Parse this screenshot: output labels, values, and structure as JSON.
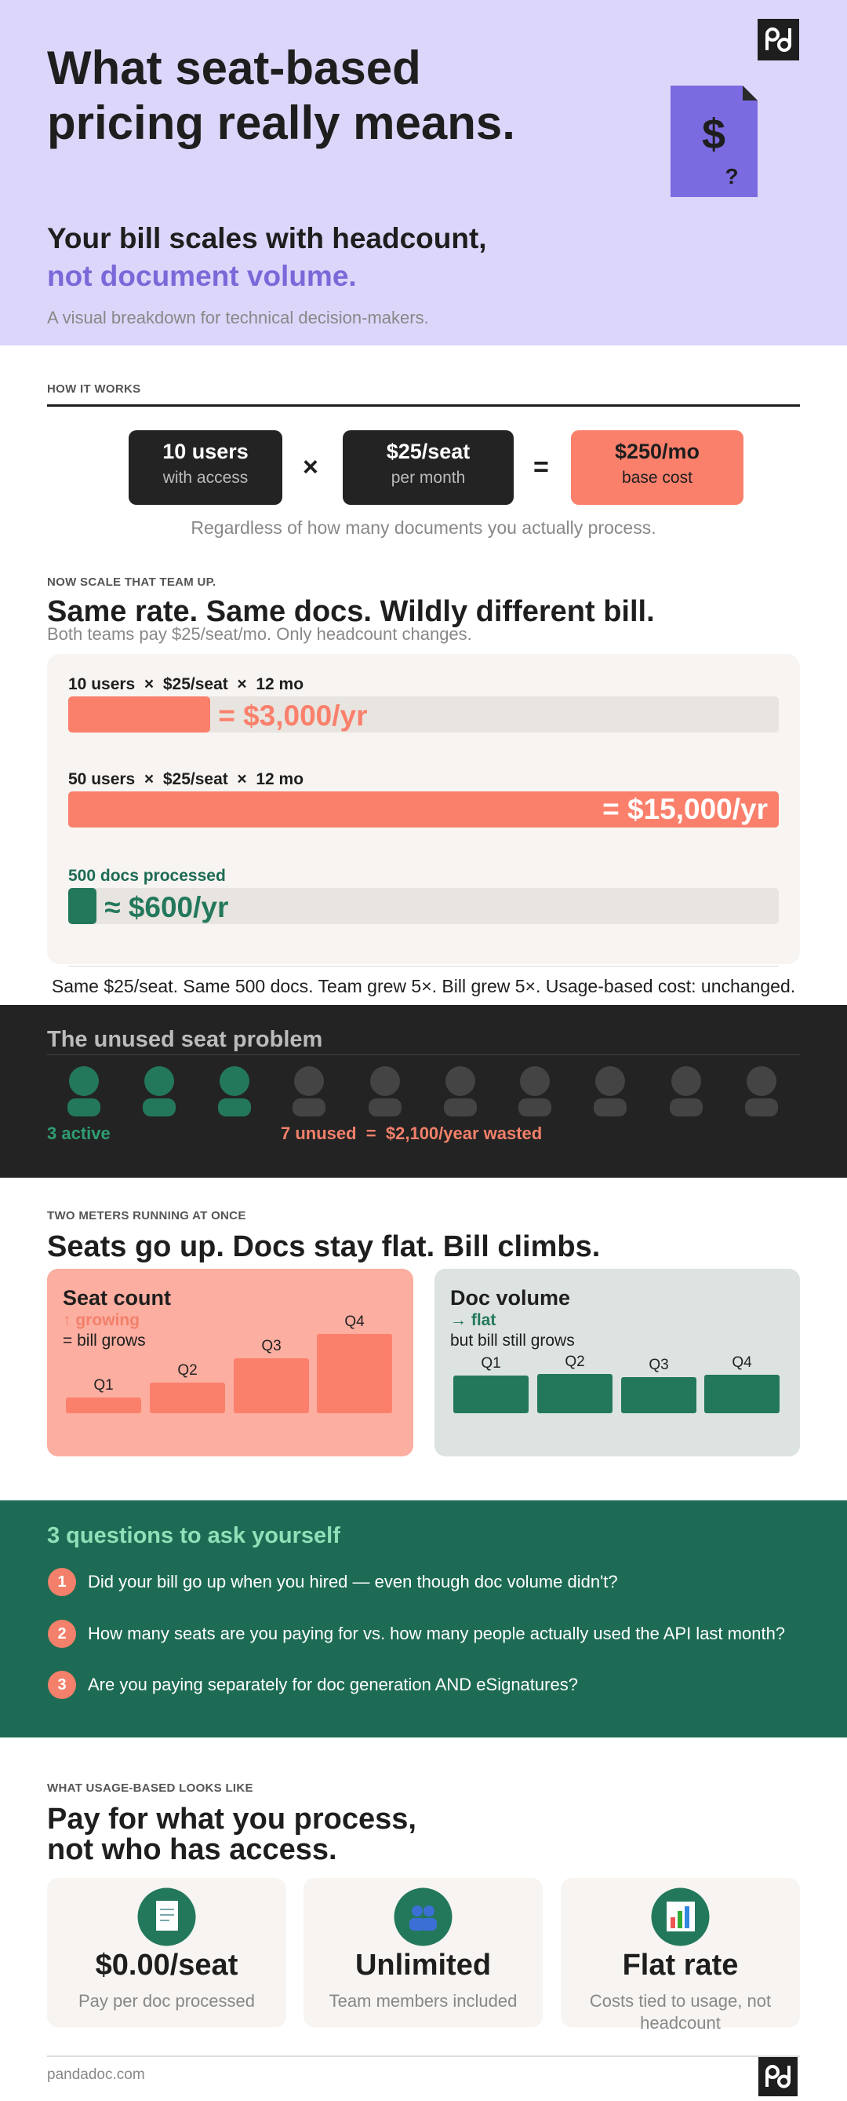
{
  "header": {
    "title": "What seat-based pricing really means.",
    "subtitle": "Your bill scales with headcount,",
    "subtitle_highlight": "not document volume.",
    "tagline": "A visual breakdown for technical decision-makers."
  },
  "how_it_works": {
    "label": "HOW IT WORKS",
    "terms": [
      {
        "value": "10 users",
        "caption": "with access"
      },
      {
        "value": "$25/seat",
        "caption": "per month"
      },
      {
        "value": "$250/mo",
        "caption": "base cost"
      }
    ],
    "operators": [
      "×",
      "="
    ],
    "note": "Regardless of how many documents you actually process."
  },
  "scale": {
    "label": "NOW SCALE THAT TEAM UP.",
    "title": "Same rate. Same docs. Wildly different bill.",
    "subtitle": "Both teams pay $25/seat/mo. Only headcount changes.",
    "rows": [
      {
        "formula": "10 users  ×  $25/seat  ×  12 mo",
        "amount": {
          "value": 3000,
          "label": "= $3,000/yr"
        }
      },
      {
        "formula": "50 users  ×  $25/seat  ×  12 mo",
        "amount": {
          "value": 15000,
          "label": "= $15,000/yr"
        }
      },
      {
        "formula": "500 docs processed",
        "amount": {
          "value": 600,
          "label": "≈ $600/yr"
        }
      }
    ],
    "footnote": "Same $25/seat. Same 500 docs. Team grew 5×. Bill grew 5×. Usage-based cost: unchanged."
  },
  "unused": {
    "title": "The unused seat problem",
    "active": "3 active",
    "unused": "7 unused  =  $2,100/year wasted"
  },
  "meters": {
    "label": "TWO METERS RUNNING AT ONCE",
    "title": "Seats go up. Docs stay flat. Bill climbs.",
    "cards": [
      {
        "title": "Seat count",
        "trend": "↑ growing",
        "note": "= bill grows",
        "quarters": [
          "Q1",
          "Q2",
          "Q3",
          "Q4"
        ]
      },
      {
        "title": "Doc volume",
        "trend": "→ flat",
        "note": "but bill still grows",
        "quarters": [
          "Q1",
          "Q2",
          "Q3",
          "Q4"
        ]
      }
    ]
  },
  "questions": {
    "title": "3 questions to ask yourself",
    "items": [
      {
        "number": 1,
        "text": "Did your bill go up when you hired — even though doc volume didn't?"
      },
      {
        "number": 2,
        "text": "How many seats are you paying for vs. how many people actually used the API last month?"
      },
      {
        "number": 3,
        "text": "Are you paying separately for doc generation AND eSignatures?"
      }
    ]
  },
  "usage": {
    "label": "WHAT USAGE-BASED LOOKS LIKE",
    "title_lines": [
      "Pay for what you process,",
      "not who has access."
    ],
    "cards": [
      {
        "value": "$0.00/seat",
        "caption": "Pay per doc processed"
      },
      {
        "value": "Unlimited",
        "caption": "Team members included"
      },
      {
        "value": "Flat rate",
        "caption": "Costs tied to usage, not headcount"
      }
    ]
  },
  "footer": {
    "site": "pandadoc.com"
  }
}
